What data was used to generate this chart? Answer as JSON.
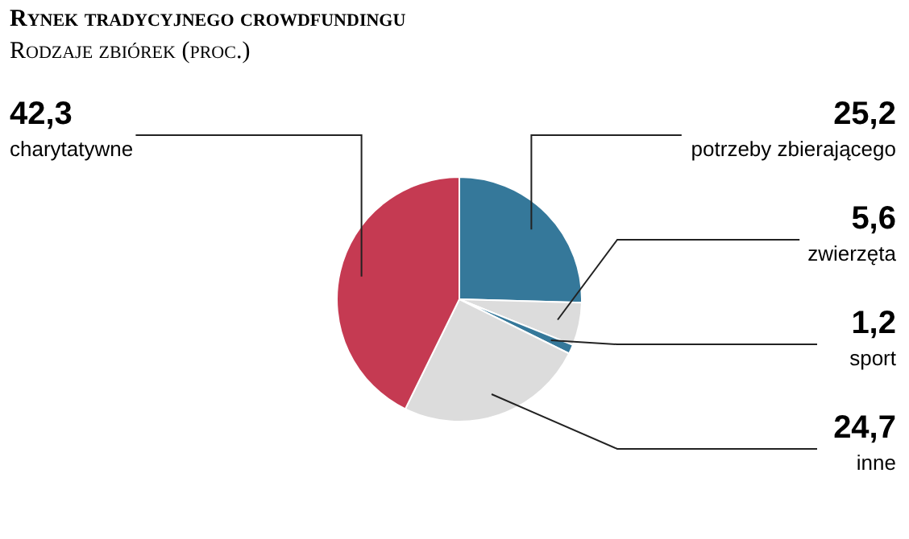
{
  "chart_data": {
    "type": "pie",
    "title": "Rynek tradycyjnego crowdfundingu",
    "subtitle": "Rodzaje zbiórek (proc.)",
    "categories": [
      "potrzeby zbierającego",
      "zwierzęta",
      "sport",
      "inne",
      "charytatywne"
    ],
    "values": [
      25.2,
      5.6,
      1.2,
      24.7,
      42.3
    ],
    "colors": [
      "#35789a",
      "#dcdcdc",
      "#35789a",
      "#dcdcdc",
      "#c53a52"
    ],
    "value_labels": [
      "25,2",
      "5,6",
      "1,2",
      "24,7",
      "42,3"
    ]
  }
}
